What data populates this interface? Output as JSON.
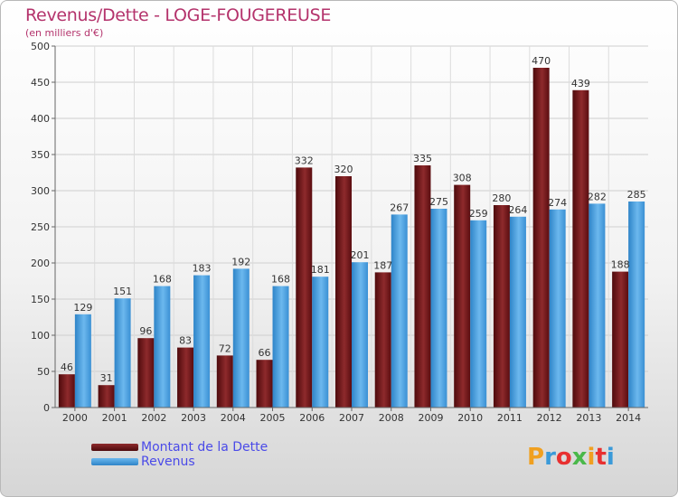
{
  "title": "Revenus/Dette - LOGE-FOUGEREUSE",
  "subtitle": "(en milliers d'€)",
  "logo": {
    "text": "Proxiti",
    "colors": [
      "#f0a020",
      "#3a9ad9",
      "#e83030",
      "#4ab84a",
      "#f0a020",
      "#e83030",
      "#3a9ad9"
    ]
  },
  "colors": {
    "dette": "#6b0f12",
    "dette_light": "#a83a3c",
    "revenus": "#3c96dc",
    "revenus_light": "#6cb8ee",
    "title": "#b4336c"
  },
  "chart_data": {
    "type": "bar",
    "title": "Revenus/Dette - LOGE-FOUGEREUSE",
    "subtitle": "(en milliers d'€)",
    "categories": [
      "2000",
      "2001",
      "2002",
      "2003",
      "2004",
      "2005",
      "2006",
      "2007",
      "2008",
      "2009",
      "2010",
      "2011",
      "2012",
      "2013",
      "2014"
    ],
    "series": [
      {
        "name": "Montant de la Dette",
        "values": [
          46,
          31,
          96,
          83,
          72,
          66,
          332,
          320,
          187,
          335,
          308,
          280,
          470,
          439,
          188
        ]
      },
      {
        "name": "Revenus",
        "values": [
          129,
          151,
          168,
          183,
          192,
          168,
          181,
          201,
          267,
          275,
          259,
          264,
          274,
          282,
          285
        ]
      }
    ],
    "value_labels": [
      [
        "46",
        "31",
        "96",
        "83",
        "72",
        "66",
        "332",
        "320",
        "187",
        "335",
        "308",
        "280",
        "470",
        "439",
        "188"
      ],
      [
        "129",
        "151",
        "168",
        "183",
        "192",
        "168",
        "181",
        "201",
        "267",
        "275",
        "259",
        "264",
        "274",
        "282",
        "285"
      ]
    ],
    "ylim": [
      0,
      500
    ],
    "yticks": [
      0,
      50,
      100,
      150,
      200,
      250,
      300,
      350,
      400,
      450,
      500
    ],
    "ytick_labels": [
      "0",
      "50",
      "100",
      "150",
      "200",
      "250",
      "300",
      "350",
      "400",
      "450",
      "500"
    ],
    "grid": true,
    "legend": "bottom-left"
  }
}
